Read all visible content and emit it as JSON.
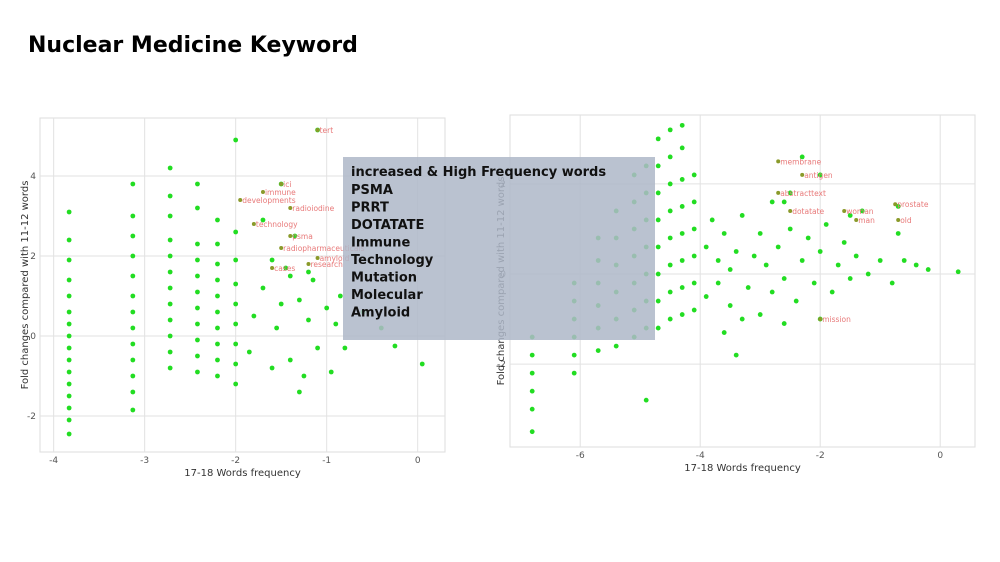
{
  "title": "Nuclear Medicine Keyword",
  "callout": {
    "heading": "increased & High Frequency words",
    "items": [
      "PSMA",
      "PRRT",
      "DOTATATE",
      "Immune",
      "Technology",
      "Mutation",
      "Molecular",
      "Amyloid"
    ]
  },
  "chart_data": [
    {
      "type": "scatter",
      "x_label": "17-18 Words frequency",
      "y_label": "Fold changes compared with 11-12 words",
      "color": "#22dd22",
      "grid": true,
      "xlim": [
        -4.15,
        0.3
      ],
      "ylim": [
        -2.9,
        5.45
      ],
      "xticks": [
        -4,
        -3,
        -2,
        -1,
        0
      ],
      "yticks": [
        -2,
        0,
        2,
        4
      ],
      "x": [
        -3.83,
        -3.83,
        -3.83,
        -3.83,
        -3.83,
        -3.83,
        -3.83,
        -3.83,
        -3.83,
        -3.83,
        -3.83,
        -3.83,
        -3.83,
        -3.83,
        -3.83,
        -3.83,
        -3.13,
        -3.13,
        -3.13,
        -3.13,
        -3.13,
        -3.13,
        -3.13,
        -3.13,
        -3.13,
        -3.13,
        -3.13,
        -3.13,
        -3.13,
        -2.72,
        -2.72,
        -2.72,
        -2.72,
        -2.72,
        -2.72,
        -2.72,
        -2.72,
        -2.72,
        -2.72,
        -2.72,
        -2.72,
        -2.42,
        -2.42,
        -2.42,
        -2.42,
        -2.42,
        -2.42,
        -2.42,
        -2.42,
        -2.42,
        -2.42,
        -2.42,
        -2.2,
        -2.2,
        -2.2,
        -2.2,
        -2.2,
        -2.2,
        -2.2,
        -2.2,
        -2.2,
        -2.2,
        -2.0,
        -2.0,
        -2.0,
        -2.0,
        -2.0,
        -2.0,
        -2.0,
        -2.0,
        -2.0,
        -1.85,
        -1.8,
        -1.7,
        -1.6,
        -1.55,
        -1.5,
        -1.45,
        -1.4,
        -1.35,
        -1.3,
        -1.25,
        -1.2,
        -1.15,
        -1.1,
        -1.1,
        -1.0,
        -0.95,
        -0.9,
        -0.85,
        -0.8,
        -0.6,
        -0.4,
        -0.25,
        0.05,
        -1.3,
        -1.5,
        -1.7,
        -1.6,
        -1.4,
        -1.2
      ],
      "values": [
        -2.45,
        -2.1,
        -1.8,
        -1.5,
        -1.2,
        -0.9,
        -0.6,
        -0.3,
        0,
        0.3,
        0.6,
        1,
        1.4,
        1.9,
        2.4,
        3.1,
        -1.85,
        -1.4,
        -1,
        -0.6,
        -0.2,
        0.2,
        0.6,
        1,
        1.5,
        2,
        2.5,
        3,
        3.8,
        -0.8,
        -0.4,
        0,
        0.4,
        0.8,
        1.2,
        1.6,
        2,
        2.4,
        3,
        3.5,
        4.2,
        -0.9,
        -0.5,
        -0.1,
        0.3,
        0.7,
        1.1,
        1.5,
        1.9,
        2.3,
        3.2,
        3.8,
        -1.0,
        -0.6,
        -0.2,
        0.2,
        0.6,
        1,
        1.4,
        1.8,
        2.3,
        2.9,
        -1.2,
        -0.7,
        -0.2,
        0.3,
        0.8,
        1.3,
        1.9,
        2.6,
        4.9,
        -0.4,
        0.5,
        1.2,
        -0.8,
        0.2,
        3.8,
        1.7,
        -0.6,
        2.5,
        0.9,
        -1.0,
        0.4,
        1.4,
        5.15,
        -0.3,
        0.7,
        -0.9,
        0.3,
        1.0,
        -0.3,
        0.6,
        0.2,
        -0.25,
        -0.7,
        -1.4,
        0.8,
        2.9,
        1.9,
        1.5,
        1.6
      ],
      "annotations": [
        {
          "x": -1.1,
          "y": 5.15,
          "text": "tert"
        },
        {
          "x": -1.5,
          "y": 3.8,
          "text": "ici"
        },
        {
          "x": -1.7,
          "y": 3.6,
          "text": "immune"
        },
        {
          "x": -1.95,
          "y": 3.4,
          "text": "developments"
        },
        {
          "x": -1.4,
          "y": 3.2,
          "text": "radioiodine"
        },
        {
          "x": -1.8,
          "y": 2.8,
          "text": "technology"
        },
        {
          "x": -1.4,
          "y": 2.5,
          "text": "psma"
        },
        {
          "x": -1.5,
          "y": 2.2,
          "text": "radiopharmaceuticals"
        },
        {
          "x": -1.1,
          "y": 1.95,
          "text": "amyloid"
        },
        {
          "x": -1.2,
          "y": 1.8,
          "text": "research"
        },
        {
          "x": -1.6,
          "y": 1.7,
          "text": "cases"
        }
      ]
    },
    {
      "type": "scatter",
      "x_label": "17-18 Words frequency",
      "y_label": "Fold changes compared with 11-12 words",
      "color": "#22dd22",
      "grid": true,
      "xlim": [
        -7.17,
        0.58
      ],
      "ylim": [
        -3.84,
        3.53
      ],
      "xticks": [
        -6,
        -4,
        -2,
        0
      ],
      "yticks": [
        -2,
        0,
        2
      ],
      "x": [
        -6.8,
        -6.8,
        -6.8,
        -6.8,
        -6.8,
        -6.8,
        -6.1,
        -6.1,
        -6.1,
        -6.1,
        -6.1,
        -6.1,
        -5.7,
        -5.7,
        -5.7,
        -5.7,
        -5.7,
        -5.7,
        -5.4,
        -5.4,
        -5.4,
        -5.4,
        -5.4,
        -5.4,
        -5.1,
        -5.1,
        -5.1,
        -5.1,
        -5.1,
        -5.1,
        -5.1,
        -4.9,
        -4.9,
        -4.9,
        -4.9,
        -4.9,
        -4.9,
        -4.9,
        -4.9,
        -4.7,
        -4.7,
        -4.7,
        -4.7,
        -4.7,
        -4.7,
        -4.7,
        -4.7,
        -4.5,
        -4.5,
        -4.5,
        -4.5,
        -4.5,
        -4.5,
        -4.5,
        -4.5,
        -4.3,
        -4.3,
        -4.3,
        -4.3,
        -4.3,
        -4.3,
        -4.3,
        -4.3,
        -4.1,
        -4.1,
        -4.1,
        -4.1,
        -4.1,
        -4.1,
        -3.9,
        -3.9,
        -3.8,
        -3.7,
        -3.7,
        -3.6,
        -3.5,
        -3.5,
        -3.4,
        -3.4,
        -3.3,
        -3.2,
        -3.1,
        -3.0,
        -3.0,
        -2.9,
        -2.8,
        -2.8,
        -2.7,
        -2.6,
        -2.5,
        -2.4,
        -2.3,
        -2.2,
        -2.1,
        -2.0,
        -1.9,
        -1.8,
        -1.7,
        -1.6,
        -1.5,
        -1.4,
        -1.3,
        -1.2,
        -1.0,
        -0.8,
        -0.6,
        -0.4,
        -0.2,
        0.3,
        -0.7,
        -0.7,
        -2.3,
        -2.0,
        -1.5,
        -2.5,
        -2.6,
        -3.3,
        -2.0,
        -2.6,
        -3.6
      ],
      "values": [
        -3.5,
        -3,
        -2.6,
        -2.2,
        -1.8,
        -1.4,
        -2.2,
        -1.8,
        -1.4,
        -1.0,
        -0.6,
        -0.2,
        -1.7,
        -1.2,
        -0.7,
        -0.2,
        0.3,
        0.8,
        -1.6,
        -1.0,
        -0.4,
        0.2,
        0.8,
        1.4,
        -1.4,
        -0.8,
        -0.2,
        0.4,
        1.0,
        1.6,
        2.2,
        -2.8,
        -1.2,
        -0.6,
        0,
        0.6,
        1.2,
        1.8,
        2.4,
        -1.2,
        -0.6,
        0,
        0.6,
        1.2,
        1.8,
        2.4,
        3.0,
        -1.0,
        -0.4,
        0.2,
        0.8,
        1.4,
        2.0,
        2.6,
        3.2,
        -0.9,
        -0.3,
        0.3,
        0.9,
        1.5,
        2.1,
        2.8,
        3.3,
        -0.8,
        -0.2,
        0.4,
        1.0,
        1.6,
        2.2,
        -0.5,
        0.6,
        1.2,
        -0.2,
        0.3,
        0.9,
        -0.7,
        0.1,
        0.5,
        -1.8,
        1.3,
        -0.3,
        0.4,
        -0.9,
        0.9,
        0.2,
        -0.4,
        1.6,
        0.6,
        -0.1,
        1.0,
        -0.6,
        0.3,
        0.8,
        -0.2,
        0.5,
        1.1,
        -0.4,
        0.2,
        0.7,
        -0.1,
        0.4,
        1.4,
        0.0,
        0.3,
        -0.2,
        0.3,
        0.2,
        0.1,
        0.05,
        1.5,
        0.9,
        2.6,
        2.2,
        1.3,
        1.8,
        1.6,
        -1.0,
        -1.0,
        -1.1,
        -1.3
      ],
      "annotations": [
        {
          "x": -2.7,
          "y": 2.5,
          "text": "membrane"
        },
        {
          "x": -2.3,
          "y": 2.2,
          "text": "antigen"
        },
        {
          "x": -2.7,
          "y": 1.8,
          "text": "abstracttext"
        },
        {
          "x": -2.5,
          "y": 1.4,
          "text": "dotatate"
        },
        {
          "x": -1.6,
          "y": 1.4,
          "text": "woman"
        },
        {
          "x": -1.4,
          "y": 1.2,
          "text": "man"
        },
        {
          "x": -0.75,
          "y": 1.55,
          "text": "prostate"
        },
        {
          "x": -0.7,
          "y": 1.2,
          "text": "old"
        },
        {
          "x": -2.0,
          "y": -1.0,
          "text": "mission"
        }
      ]
    }
  ]
}
